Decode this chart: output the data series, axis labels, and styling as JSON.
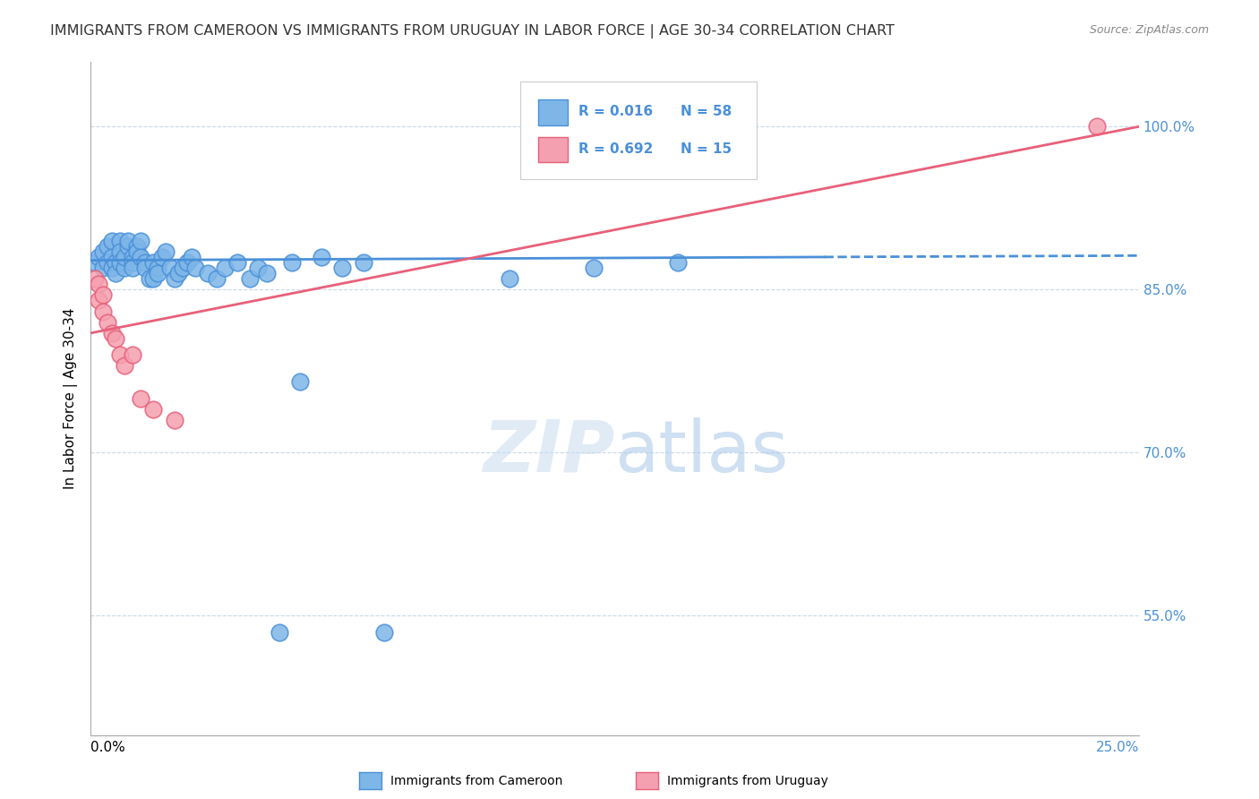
{
  "title": "IMMIGRANTS FROM CAMEROON VS IMMIGRANTS FROM URUGUAY IN LABOR FORCE | AGE 30-34 CORRELATION CHART",
  "source": "Source: ZipAtlas.com",
  "xlabel_bottom_left": "0.0%",
  "xlabel_bottom_right": "25.0%",
  "ylabel": "In Labor Force | Age 30-34",
  "yaxis_labels": [
    "100.0%",
    "85.0%",
    "70.0%",
    "55.0%"
  ],
  "yaxis_values": [
    1.0,
    0.85,
    0.7,
    0.55
  ],
  "xlim": [
    0.0,
    0.25
  ],
  "ylim": [
    0.44,
    1.06
  ],
  "legend_r1": "R = 0.016",
  "legend_n1": "N = 58",
  "legend_r2": "R = 0.692",
  "legend_n2": "N = 15",
  "watermark_zip": "ZIP",
  "watermark_atlas": "atlas",
  "color_blue": "#7EB6E8",
  "color_pink": "#F5A0B0",
  "color_blue_dark": "#4A90D9",
  "color_pink_dark": "#E8607A",
  "color_grid": "#C8D8E8",
  "color_title": "#333333",
  "color_right_axis": "#4A90D9",
  "cameroon_x": [
    0.001,
    0.002,
    0.003,
    0.003,
    0.004,
    0.004,
    0.005,
    0.005,
    0.005,
    0.006,
    0.006,
    0.007,
    0.007,
    0.007,
    0.008,
    0.008,
    0.009,
    0.009,
    0.01,
    0.01,
    0.01,
    0.011,
    0.011,
    0.012,
    0.012,
    0.013,
    0.013,
    0.014,
    0.015,
    0.015,
    0.016,
    0.016,
    0.017,
    0.018,
    0.019,
    0.02,
    0.021,
    0.022,
    0.023,
    0.024,
    0.025,
    0.028,
    0.03,
    0.032,
    0.035,
    0.038,
    0.04,
    0.042,
    0.045,
    0.048,
    0.05,
    0.055,
    0.06,
    0.065,
    0.07,
    0.1,
    0.12,
    0.14
  ],
  "cameroon_y": [
    0.875,
    0.88,
    0.87,
    0.885,
    0.89,
    0.875,
    0.895,
    0.88,
    0.87,
    0.875,
    0.865,
    0.895,
    0.885,
    0.875,
    0.87,
    0.88,
    0.89,
    0.895,
    0.88,
    0.875,
    0.87,
    0.89,
    0.885,
    0.895,
    0.88,
    0.875,
    0.87,
    0.86,
    0.875,
    0.86,
    0.87,
    0.865,
    0.88,
    0.885,
    0.87,
    0.86,
    0.865,
    0.87,
    0.875,
    0.88,
    0.87,
    0.865,
    0.86,
    0.87,
    0.875,
    0.86,
    0.87,
    0.865,
    0.535,
    0.875,
    0.765,
    0.88,
    0.87,
    0.875,
    0.535,
    0.86,
    0.87,
    0.875
  ],
  "uruguay_x": [
    0.001,
    0.002,
    0.002,
    0.003,
    0.003,
    0.004,
    0.005,
    0.006,
    0.007,
    0.008,
    0.01,
    0.012,
    0.015,
    0.02,
    0.24
  ],
  "uruguay_y": [
    0.86,
    0.855,
    0.84,
    0.845,
    0.83,
    0.82,
    0.81,
    0.805,
    0.79,
    0.78,
    0.79,
    0.75,
    0.74,
    0.73,
    1.0
  ],
  "cam_trend_x0": 0.0,
  "cam_trend_y0": 0.877,
  "cam_trend_x1": 0.175,
  "cam_trend_y1": 0.88,
  "uru_trend_x0": 0.0,
  "uru_trend_y0": 0.81,
  "uru_trend_x1": 0.25,
  "uru_trend_y1": 1.0
}
